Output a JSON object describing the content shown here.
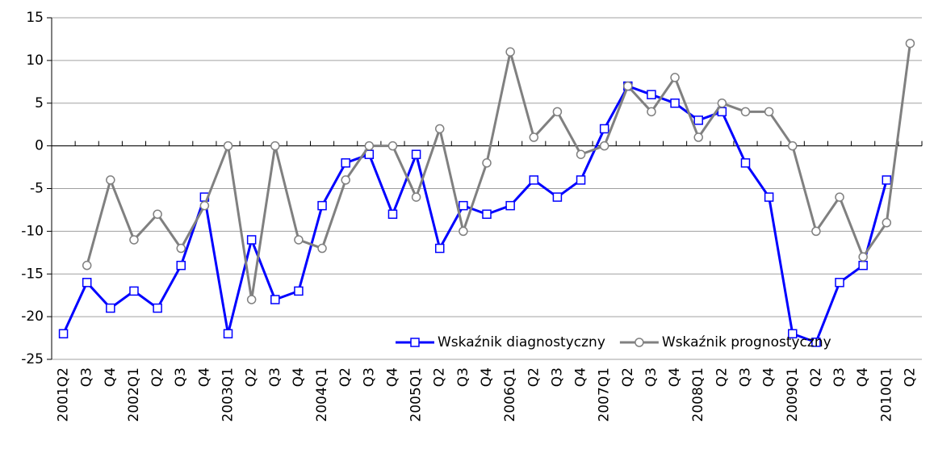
{
  "chart_data": {
    "type": "line",
    "categories": [
      "2001Q2",
      "Q3",
      "Q4",
      "2002Q1",
      "Q2",
      "Q3",
      "Q4",
      "2003Q1",
      "Q2",
      "Q3",
      "Q4",
      "2004Q1",
      "Q2",
      "Q3",
      "Q4",
      "2005Q1",
      "Q2",
      "Q3",
      "Q4",
      "2006Q1",
      "Q2",
      "Q3",
      "Q4",
      "2007Q1",
      "Q2",
      "Q3",
      "Q4",
      "2008Q1",
      "Q2",
      "Q3",
      "Q4",
      "2009Q1",
      "Q2",
      "Q3",
      "Q4",
      "2010Q1",
      "Q2"
    ],
    "series": [
      {
        "name": "Wskaźnik diagnostyczny",
        "color": "#0000ff",
        "marker": "square",
        "values": [
          -22,
          -16,
          -19,
          -17,
          -19,
          -14,
          -6,
          -22,
          -11,
          -18,
          -17,
          -7,
          -2,
          -1,
          -8,
          -1,
          -12,
          -7,
          -8,
          -7,
          -4,
          -6,
          -4,
          2,
          7,
          6,
          5,
          3,
          4,
          -2,
          -6,
          -22,
          -23,
          -16,
          -14,
          -4,
          null
        ]
      },
      {
        "name": "Wskaźnik prognostyczny",
        "color": "#808080",
        "marker": "circle",
        "values": [
          null,
          -14,
          -4,
          -11,
          -8,
          -12,
          -7,
          0,
          -18,
          0,
          -11,
          -12,
          -4,
          0,
          0,
          -6,
          2,
          -10,
          -2,
          11,
          1,
          4,
          -1,
          0,
          7,
          4,
          8,
          1,
          5,
          4,
          4,
          0,
          -10,
          -6,
          -13,
          -9,
          12
        ]
      }
    ],
    "ylim": [
      -25,
      15
    ],
    "yticks": [
      -25,
      -20,
      -15,
      -10,
      -5,
      0,
      5,
      10,
      15
    ],
    "grid": true,
    "legend": "bottom-right"
  }
}
